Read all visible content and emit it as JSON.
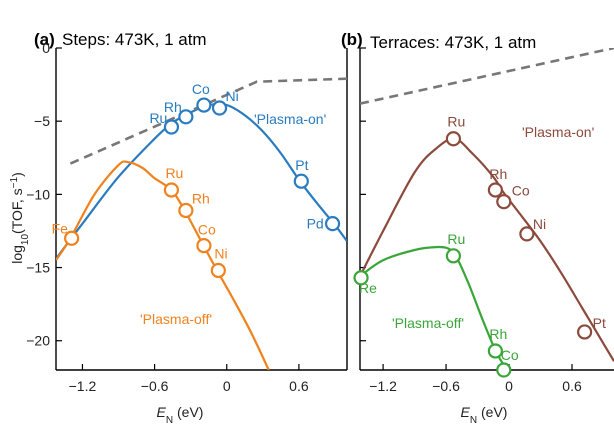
{
  "chart_data": [
    {
      "type": "line",
      "panel_label": "(a)",
      "title": "Steps: 473K, 1 atm",
      "xlabel": "E_N (eV)",
      "ylabel": "log10(TOF, s^-1)",
      "xlim": [
        -1.42,
        1.0
      ],
      "ylim": [
        -22,
        0
      ],
      "x_ticks": [
        "-1.2",
        "-0.6",
        "0",
        "0.6"
      ],
      "x_tick_values": [
        -1.2,
        -0.6,
        0,
        0.6
      ],
      "y_ticks": [
        "0",
        "-5",
        "-10",
        "-15",
        "-20"
      ],
      "y_tick_values": [
        0,
        -5,
        -10,
        -15,
        -20
      ],
      "grid": false,
      "annotations": [
        "'Plasma-on'",
        "'Plasma-off'"
      ],
      "series": [
        {
          "color": "#2a7bbf",
          "curve": [
            [
              -1.42,
              -14.4
            ],
            [
              -1.2,
              -12.0
            ],
            [
              -0.9,
              -8.8
            ],
            [
              -0.6,
              -6.2
            ],
            [
              -0.45,
              -5.1
            ],
            [
              -0.3,
              -4.4
            ],
            [
              -0.15,
              -3.9
            ],
            [
              0.0,
              -3.9
            ],
            [
              0.15,
              -4.6
            ],
            [
              0.3,
              -5.7
            ],
            [
              0.45,
              -7.2
            ],
            [
              0.6,
              -9.0
            ],
            [
              0.75,
              -10.6
            ],
            [
              0.9,
              -12.1
            ],
            [
              1.0,
              -13.2
            ]
          ],
          "points": [
            {
              "label": "Ru",
              "x": -0.46,
              "y": -5.4
            },
            {
              "label": "Rh",
              "x": -0.34,
              "y": -4.7
            },
            {
              "label": "Co",
              "x": -0.19,
              "y": -3.9
            },
            {
              "label": "Ni",
              "x": -0.06,
              "y": -4.1
            },
            {
              "label": "Pt",
              "x": 0.62,
              "y": -9.1
            },
            {
              "label": "Pd",
              "x": 0.88,
              "y": -12.0
            }
          ]
        },
        {
          "color": "#f0821e",
          "curve": [
            [
              -1.42,
              -14.5
            ],
            [
              -1.3,
              -13.0
            ],
            [
              -1.1,
              -10.0
            ],
            [
              -0.9,
              -8.0
            ],
            [
              -0.82,
              -7.8
            ],
            [
              -0.7,
              -8.2
            ],
            [
              -0.6,
              -8.9
            ],
            [
              -0.46,
              -9.7
            ],
            [
              -0.35,
              -11.1
            ],
            [
              -0.2,
              -13.4
            ],
            [
              -0.08,
              -15.2
            ],
            [
              0.05,
              -17.1
            ],
            [
              0.2,
              -19.4
            ],
            [
              0.35,
              -22.0
            ]
          ],
          "points": [
            {
              "label": "Fe",
              "x": -1.29,
              "y": -13.0
            },
            {
              "label": "Ru",
              "x": -0.46,
              "y": -9.7
            },
            {
              "label": "Rh",
              "x": -0.34,
              "y": -11.1
            },
            {
              "label": "Co",
              "x": -0.19,
              "y": -13.5
            },
            {
              "label": "Ni",
              "x": -0.07,
              "y": -15.2
            }
          ]
        },
        {
          "color": "#777777",
          "dashed": true,
          "curve": [
            [
              -1.3,
              -7.9
            ],
            [
              0.25,
              -2.3
            ],
            [
              1.0,
              -2.1
            ]
          ]
        }
      ]
    },
    {
      "type": "line",
      "panel_label": "(b)",
      "title": "Terraces: 473K, 1 atm",
      "xlabel": "E_N (eV)",
      "xlim": [
        -1.42,
        1.0
      ],
      "ylim": [
        -22,
        0
      ],
      "x_ticks": [
        "-1.2",
        "-0.6",
        "0",
        "0.6"
      ],
      "x_tick_values": [
        -1.2,
        -0.6,
        0,
        0.6
      ],
      "grid": false,
      "annotations": [
        "'Plasma-on'",
        "'Plasma-off'"
      ],
      "series": [
        {
          "color": "#8c4a3c",
          "curve": [
            [
              -1.42,
              -15.6
            ],
            [
              -1.2,
              -12.5
            ],
            [
              -0.9,
              -8.5
            ],
            [
              -0.7,
              -6.9
            ],
            [
              -0.52,
              -6.2
            ],
            [
              -0.35,
              -7.2
            ],
            [
              -0.15,
              -8.8
            ],
            [
              -0.05,
              -9.9
            ],
            [
              0.1,
              -11.3
            ],
            [
              0.3,
              -13.2
            ],
            [
              0.5,
              -15.4
            ],
            [
              0.7,
              -17.8
            ],
            [
              0.85,
              -19.6
            ],
            [
              1.0,
              -21.4
            ]
          ],
          "points": [
            {
              "label": "Ru",
              "x": -0.53,
              "y": -6.2
            },
            {
              "label": "Rh",
              "x": -0.13,
              "y": -9.7
            },
            {
              "label": "Co",
              "x": -0.05,
              "y": -10.5
            },
            {
              "label": "Ni",
              "x": 0.17,
              "y": -12.7
            },
            {
              "label": "Pt",
              "x": 0.72,
              "y": -19.4
            }
          ]
        },
        {
          "color": "#3aa63a",
          "curve": [
            [
              -1.42,
              -15.6
            ],
            [
              -1.2,
              -14.5
            ],
            [
              -0.9,
              -13.8
            ],
            [
              -0.7,
              -13.6
            ],
            [
              -0.58,
              -13.7
            ],
            [
              -0.5,
              -14.3
            ],
            [
              -0.38,
              -16.2
            ],
            [
              -0.25,
              -18.6
            ],
            [
              -0.12,
              -20.8
            ],
            [
              -0.02,
              -22.0
            ]
          ],
          "points": [
            {
              "label": "Re",
              "x": -1.41,
              "y": -15.7
            },
            {
              "label": "Ru",
              "x": -0.53,
              "y": -14.2
            },
            {
              "label": "Rh",
              "x": -0.13,
              "y": -20.7
            },
            {
              "label": "Co",
              "x": -0.05,
              "y": -22.0
            }
          ]
        },
        {
          "color": "#777777",
          "dashed": true,
          "curve": [
            [
              -1.42,
              -3.8
            ],
            [
              1.0,
              0.0
            ]
          ]
        }
      ]
    }
  ]
}
